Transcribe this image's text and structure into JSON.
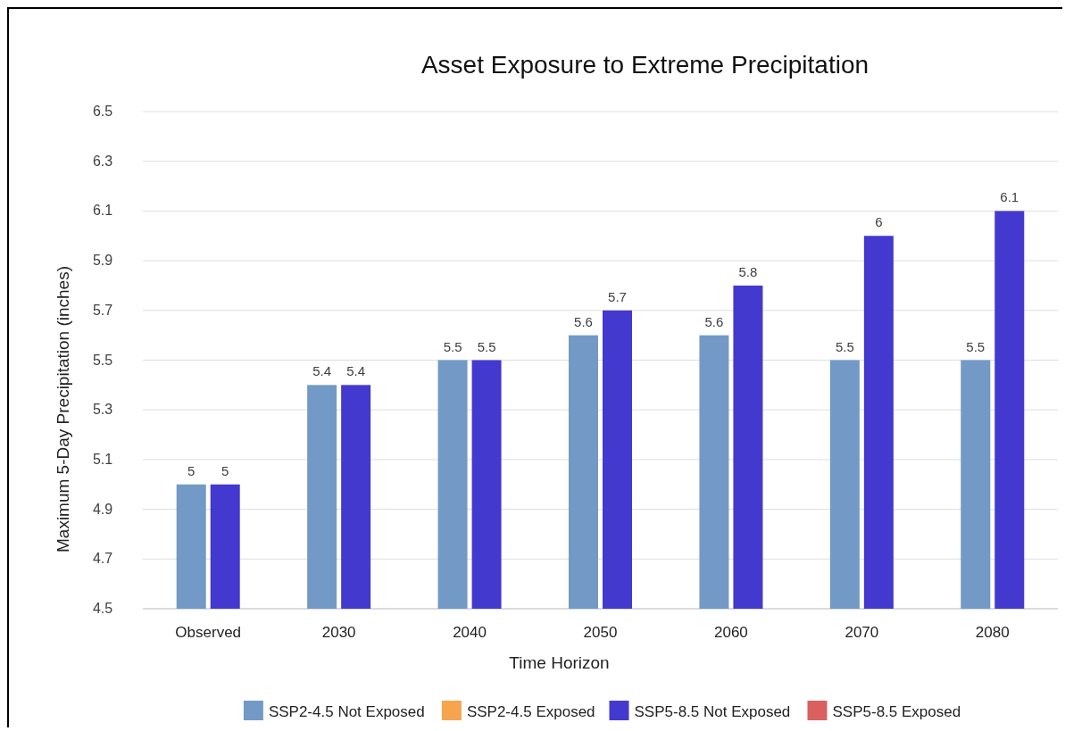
{
  "chart_data": {
    "type": "bar",
    "title": "Asset Exposure to Extreme Precipitation",
    "xlabel": "Time Horizon",
    "ylabel": "Maximum 5-Day Precipitation (inches)",
    "categories": [
      "Observed",
      "2030",
      "2040",
      "2050",
      "2060",
      "2070",
      "2080"
    ],
    "series": [
      {
        "name": "SSP2-4.5 Not Exposed",
        "color": "#7399c6",
        "values": [
          5,
          5.4,
          5.5,
          5.6,
          5.6,
          5.5,
          5.5
        ]
      },
      {
        "name": "SSP2-4.5 Exposed",
        "color": "#f6a54e",
        "values": [
          null,
          null,
          null,
          null,
          null,
          null,
          null
        ]
      },
      {
        "name": "SSP5-8.5 Not Exposed",
        "color": "#4339cf",
        "values": [
          5,
          5.4,
          5.5,
          5.7,
          5.8,
          6,
          6.1
        ]
      },
      {
        "name": "SSP5-8.5 Exposed",
        "color": "#d9605f",
        "values": [
          null,
          null,
          null,
          null,
          null,
          null,
          null
        ]
      }
    ],
    "ylim": [
      4.5,
      6.5
    ],
    "yticks": [
      4.5,
      4.7,
      4.9,
      5.1,
      5.3,
      5.5,
      5.7,
      5.9,
      6.1,
      6.3,
      6.5
    ],
    "grid": "y",
    "legend": "bottom",
    "data_labels": true
  }
}
